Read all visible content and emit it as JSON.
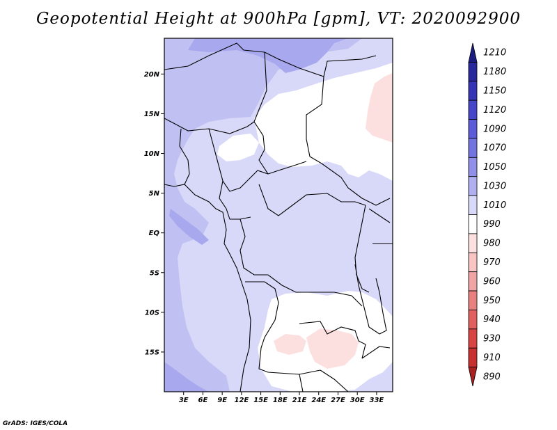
{
  "title": "Geopotential Height at 900hPa [gpm], VT: 2020092900",
  "credit": "GrADS: IGES/COLA",
  "map": {
    "lon_range": [
      0,
      35.5
    ],
    "lat_range": [
      -20,
      24.5
    ],
    "lat_ticks": [
      {
        "value": 20,
        "label": "20N"
      },
      {
        "value": 15,
        "label": "15N"
      },
      {
        "value": 10,
        "label": "10N"
      },
      {
        "value": 5,
        "label": "5N"
      },
      {
        "value": 0,
        "label": "EQ"
      },
      {
        "value": -5,
        "label": "5S"
      },
      {
        "value": -10,
        "label": "10S"
      },
      {
        "value": -15,
        "label": "15S"
      }
    ],
    "lon_ticks": [
      {
        "value": 3,
        "label": "3E"
      },
      {
        "value": 6,
        "label": "6E"
      },
      {
        "value": 9,
        "label": "9E"
      },
      {
        "value": 12,
        "label": "12E"
      },
      {
        "value": 15,
        "label": "15E"
      },
      {
        "value": 18,
        "label": "18E"
      },
      {
        "value": 21,
        "label": "21E"
      },
      {
        "value": 24,
        "label": "24E"
      },
      {
        "value": 27,
        "label": "27E"
      },
      {
        "value": 30,
        "label": "30E"
      },
      {
        "value": 33,
        "label": "33E"
      }
    ]
  },
  "colorbar": {
    "levels": [
      "1210",
      "1180",
      "1150",
      "1120",
      "1090",
      "1070",
      "1050",
      "1030",
      "1010",
      "990",
      "980",
      "970",
      "960",
      "950",
      "940",
      "930",
      "910",
      "890"
    ],
    "colors": [
      "#1c1c80",
      "#28289c",
      "#3434b4",
      "#4646c8",
      "#5c5cd8",
      "#7474e0",
      "#9090e8",
      "#b0b0f0",
      "#d8d8f8",
      "#ffffff",
      "#fce0e0",
      "#f8c4c4",
      "#f0a4a4",
      "#e88080",
      "#e06060",
      "#d84444",
      "#c83030",
      "#a82020"
    ]
  },
  "field_colors": {
    "c1010": "#d8d8f8",
    "c1030": "#c0c0f2",
    "c1050": "#a8a8ee",
    "c990": "#ffffff",
    "c980": "#fce0e0"
  }
}
